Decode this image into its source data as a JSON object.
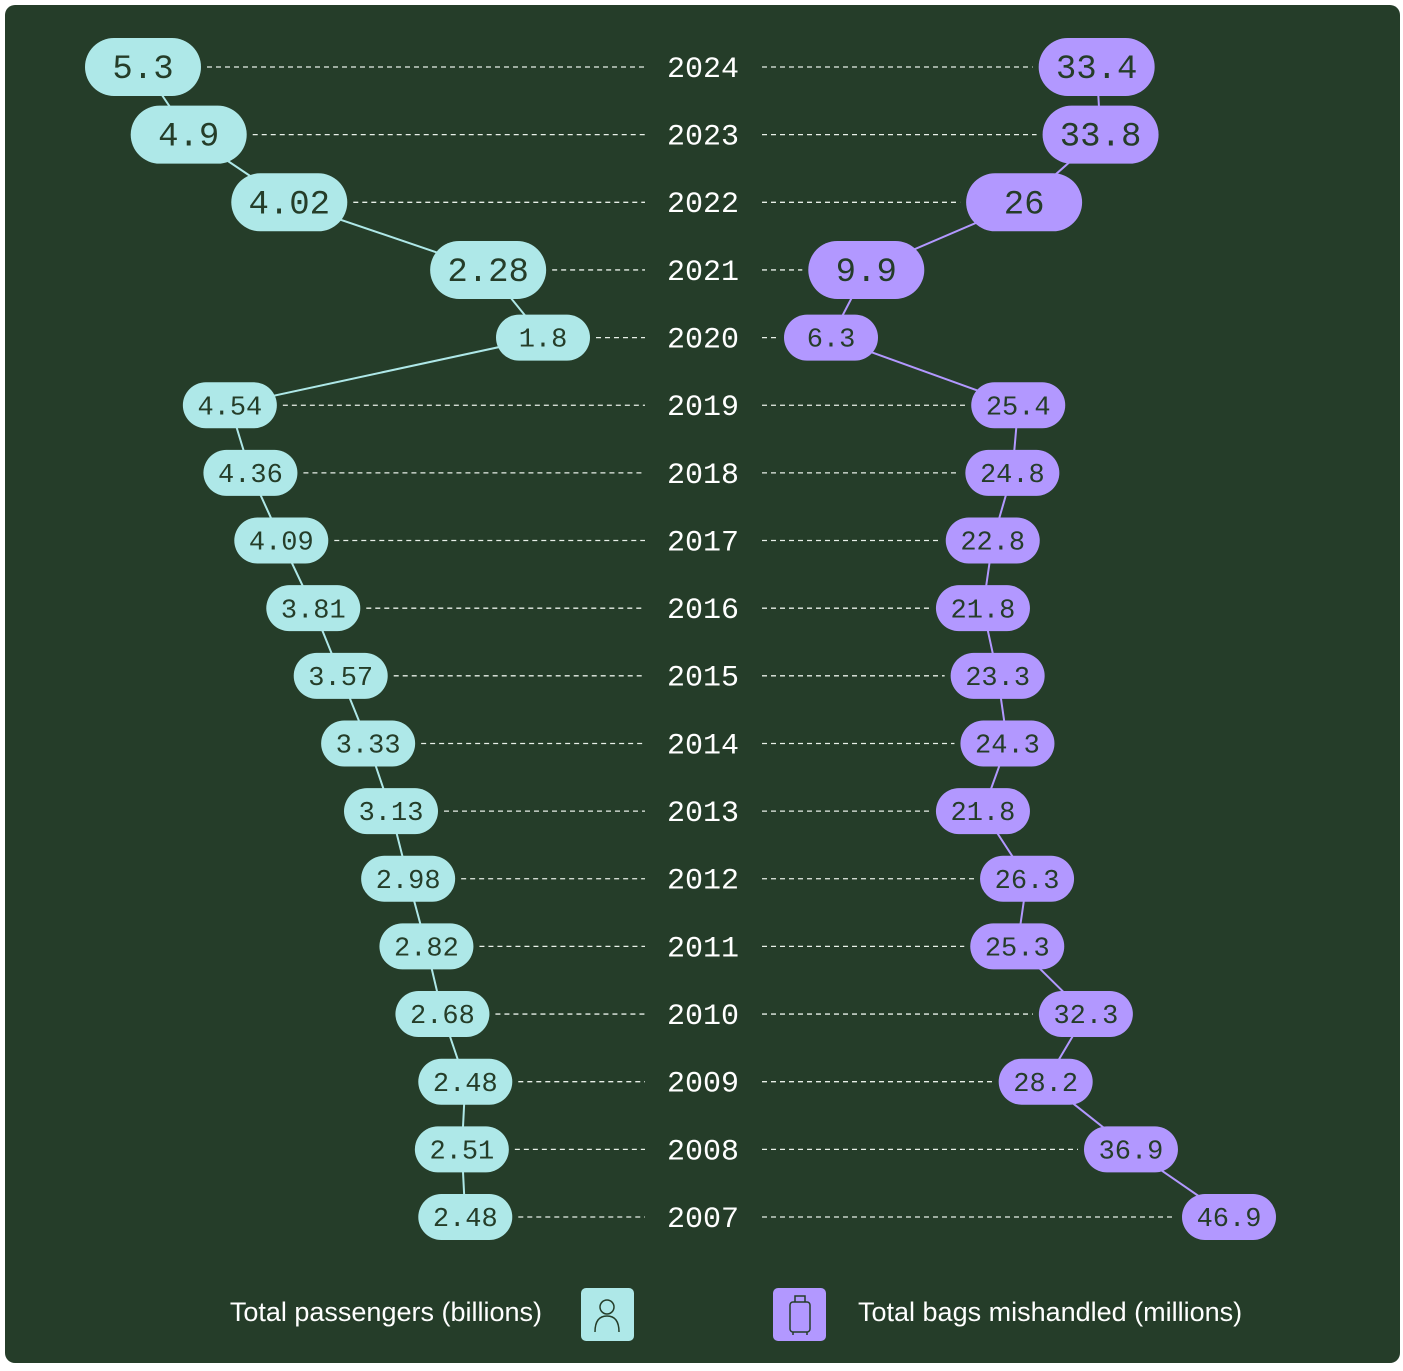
{
  "chart_data": {
    "type": "diverging-dot",
    "categories": [
      "2024",
      "2023",
      "2022",
      "2021",
      "2020",
      "2019",
      "2018",
      "2017",
      "2016",
      "2015",
      "2014",
      "2013",
      "2012",
      "2011",
      "2010",
      "2009",
      "2008",
      "2007"
    ],
    "series": [
      {
        "name": "Total passengers (billions)",
        "color": "#aee8e8",
        "side": "left",
        "values": [
          5.3,
          4.9,
          4.02,
          2.28,
          1.8,
          4.54,
          4.36,
          4.09,
          3.81,
          3.57,
          3.33,
          3.13,
          2.98,
          2.82,
          2.68,
          2.48,
          2.51,
          2.48
        ]
      },
      {
        "name": "Total bags mishandled (millions)",
        "color": "#b298ff",
        "side": "right",
        "values": [
          33.4,
          33.8,
          26,
          9.9,
          6.3,
          25.4,
          24.8,
          22.8,
          21.8,
          23.3,
          24.3,
          21.8,
          26.3,
          25.3,
          32.3,
          28.2,
          36.9,
          46.9
        ]
      }
    ]
  }
}
